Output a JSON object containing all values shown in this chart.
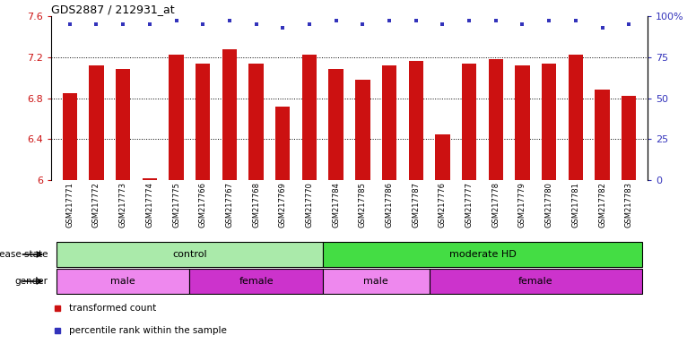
{
  "title": "GDS2887 / 212931_at",
  "samples": [
    "GSM217771",
    "GSM217772",
    "GSM217773",
    "GSM217774",
    "GSM217775",
    "GSM217766",
    "GSM217767",
    "GSM217768",
    "GSM217769",
    "GSM217770",
    "GSM217784",
    "GSM217785",
    "GSM217786",
    "GSM217787",
    "GSM217776",
    "GSM217777",
    "GSM217778",
    "GSM217779",
    "GSM217780",
    "GSM217781",
    "GSM217782",
    "GSM217783"
  ],
  "bar_values": [
    6.85,
    7.12,
    7.08,
    6.02,
    7.22,
    7.14,
    7.28,
    7.14,
    6.72,
    7.22,
    7.08,
    6.98,
    7.12,
    7.16,
    6.45,
    7.14,
    7.18,
    7.12,
    7.14,
    7.22,
    6.88,
    6.82
  ],
  "percentile_values": [
    95,
    95,
    95,
    95,
    97,
    95,
    97,
    95,
    93,
    95,
    97,
    95,
    97,
    97,
    95,
    97,
    97,
    95,
    97,
    97,
    93,
    95
  ],
  "ylim": [
    6.0,
    7.6
  ],
  "yticks": [
    6.0,
    6.4,
    6.8,
    7.2,
    7.6
  ],
  "ytick_labels": [
    "6",
    "6.4",
    "6.8",
    "7.2",
    "7.6"
  ],
  "y2lim": [
    0,
    100
  ],
  "y2ticks": [
    0,
    25,
    50,
    75,
    100
  ],
  "y2tick_labels": [
    "0",
    "25",
    "50",
    "75",
    "100%"
  ],
  "bar_color": "#cc1111",
  "dot_color": "#3333bb",
  "disease_state_groups": [
    {
      "label": "control",
      "start": 0,
      "end": 10,
      "color": "#aaeaaa"
    },
    {
      "label": "moderate HD",
      "start": 10,
      "end": 22,
      "color": "#44dd44"
    }
  ],
  "gender_groups": [
    {
      "label": "male",
      "start": 0,
      "end": 5,
      "color": "#ee88ee"
    },
    {
      "label": "female",
      "start": 5,
      "end": 10,
      "color": "#cc33cc"
    },
    {
      "label": "male",
      "start": 10,
      "end": 14,
      "color": "#ee88ee"
    },
    {
      "label": "female",
      "start": 14,
      "end": 22,
      "color": "#cc33cc"
    }
  ],
  "legend_items": [
    {
      "label": "transformed count",
      "color": "#cc1111"
    },
    {
      "label": "percentile rank within the sample",
      "color": "#3333bb"
    }
  ],
  "bar_width": 0.55,
  "sample_label_fontsize": 6.5,
  "label_strip_bg": "#cccccc"
}
